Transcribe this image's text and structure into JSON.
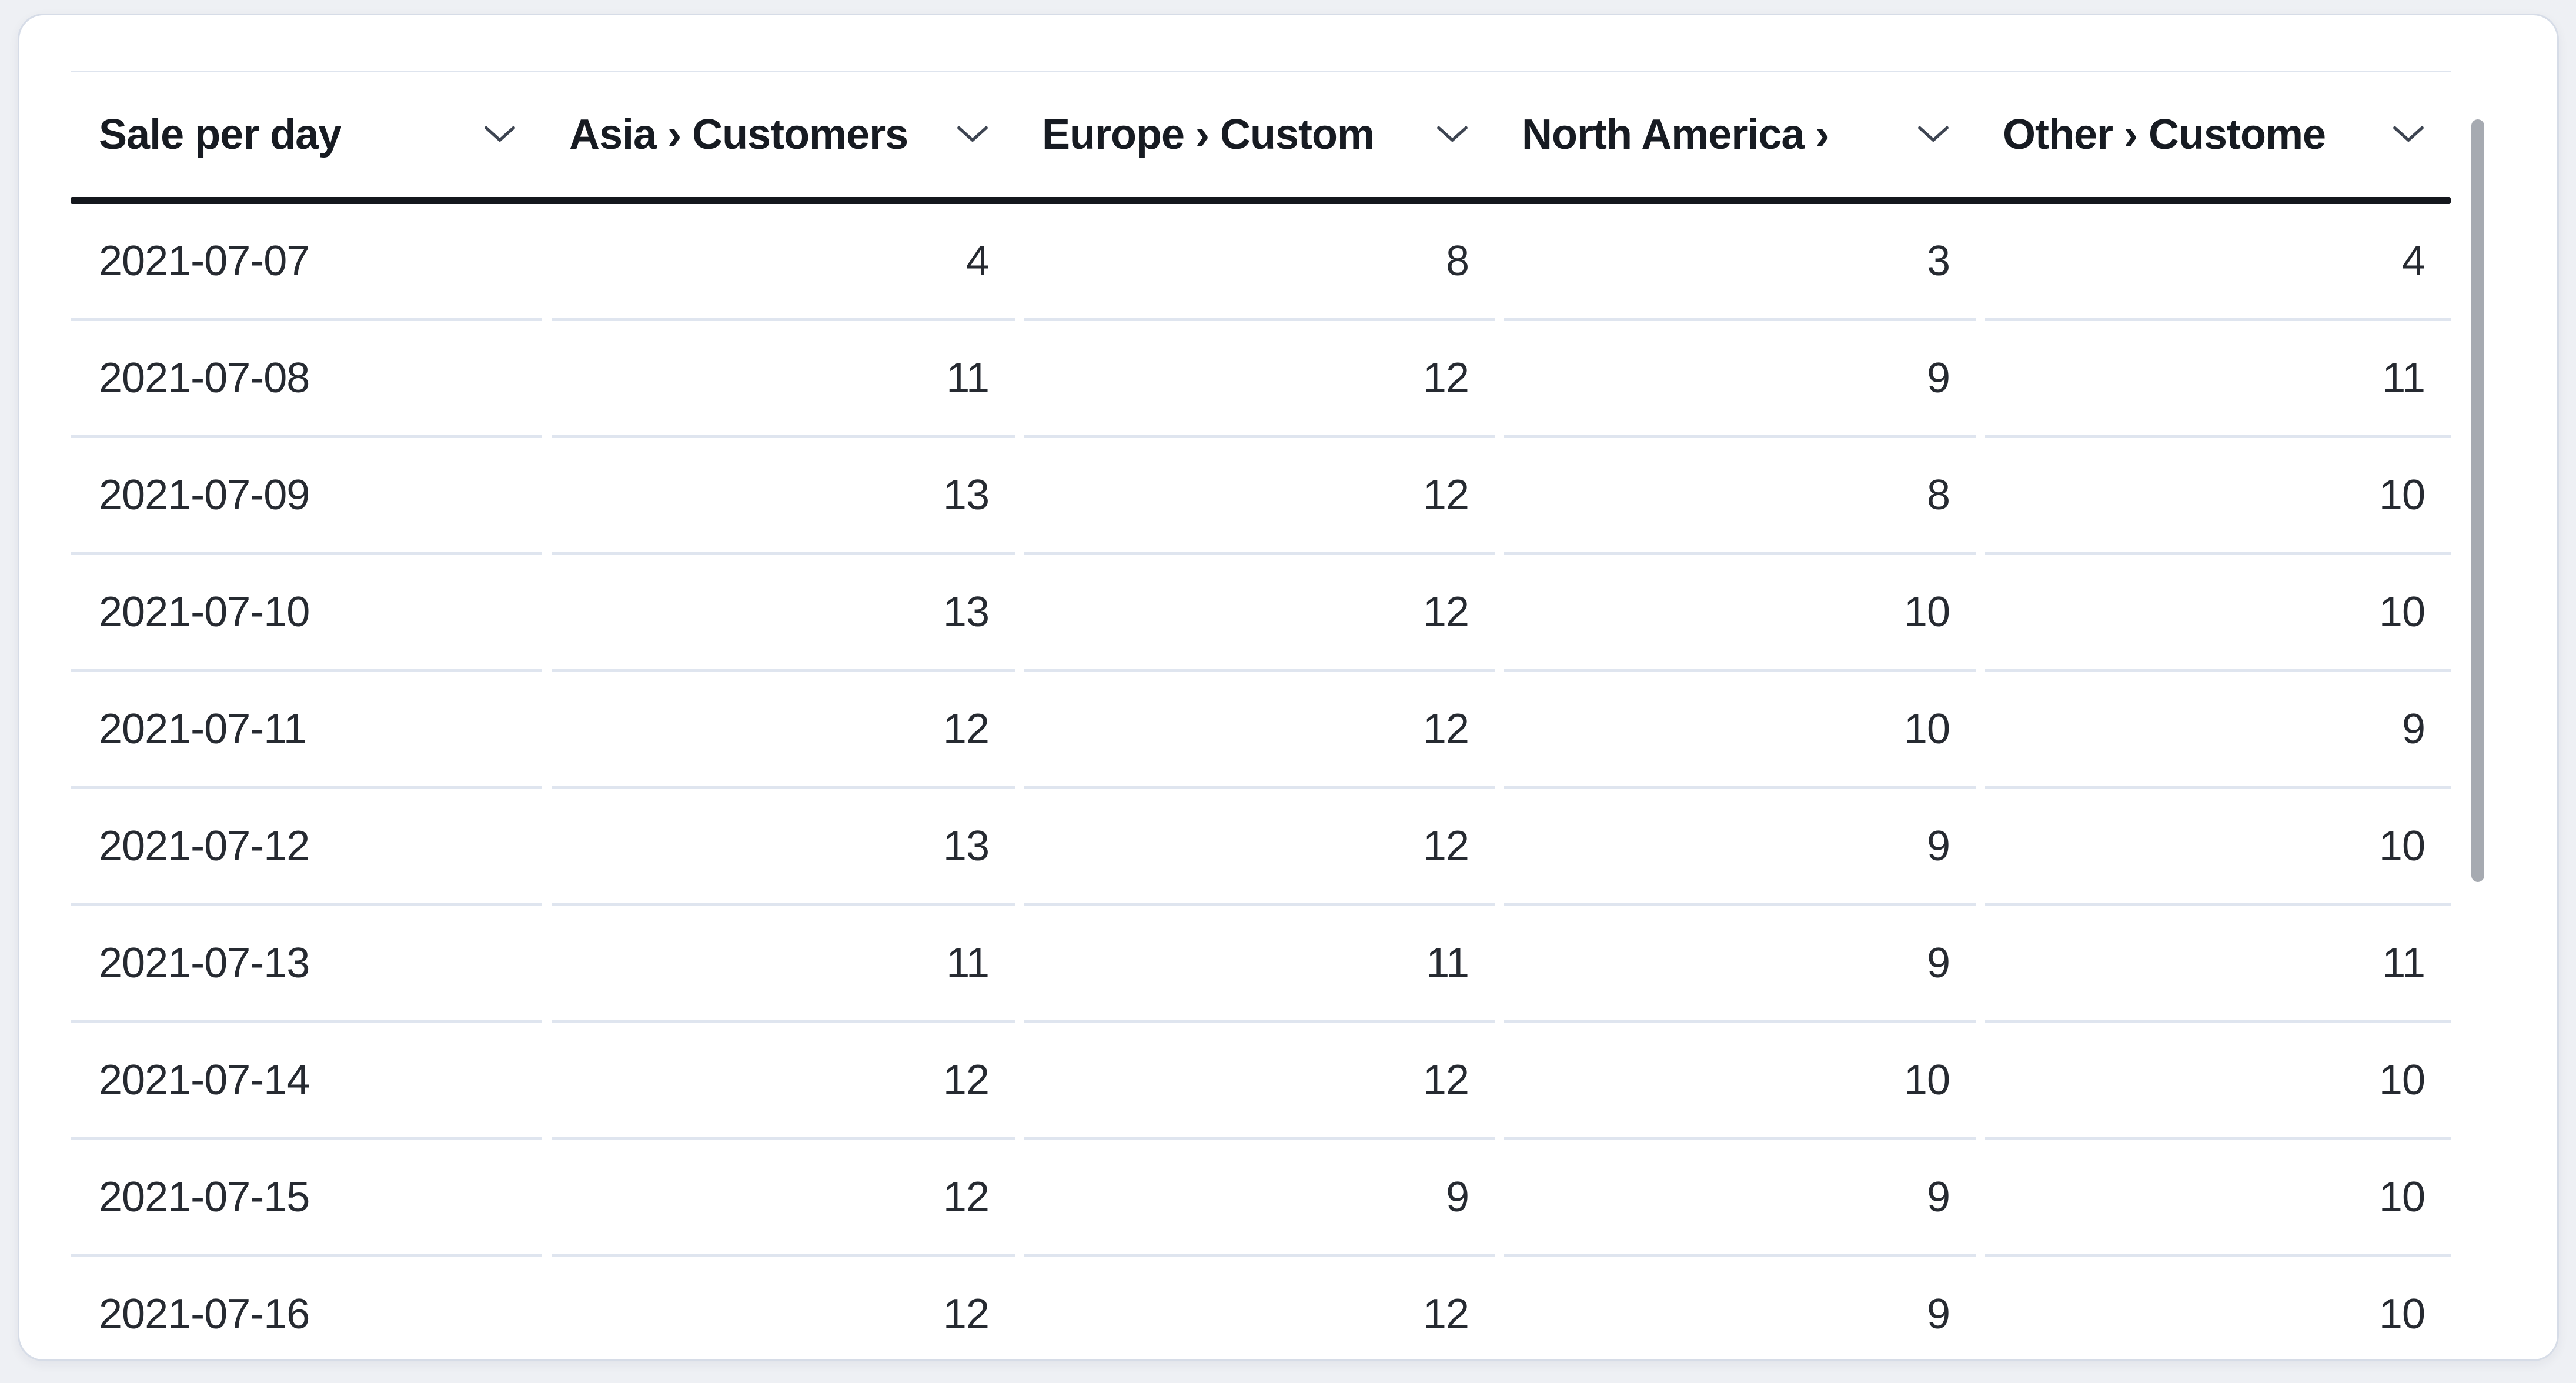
{
  "table": {
    "columns": [
      {
        "label": "Sale per day",
        "align": "left"
      },
      {
        "label": "Asia › Customers",
        "align": "right"
      },
      {
        "label": "Europe › Custom",
        "align": "right"
      },
      {
        "label": "North America ›",
        "align": "right"
      },
      {
        "label": "Other › Custome",
        "align": "right"
      }
    ],
    "rows": [
      [
        "2021-07-07",
        "4",
        "8",
        "3",
        "4"
      ],
      [
        "2021-07-08",
        "11",
        "12",
        "9",
        "11"
      ],
      [
        "2021-07-09",
        "13",
        "12",
        "8",
        "10"
      ],
      [
        "2021-07-10",
        "13",
        "12",
        "10",
        "10"
      ],
      [
        "2021-07-11",
        "12",
        "12",
        "10",
        "9"
      ],
      [
        "2021-07-12",
        "13",
        "12",
        "9",
        "10"
      ],
      [
        "2021-07-13",
        "11",
        "11",
        "9",
        "11"
      ],
      [
        "2021-07-14",
        "12",
        "12",
        "10",
        "10"
      ],
      [
        "2021-07-15",
        "12",
        "9",
        "9",
        "10"
      ],
      [
        "2021-07-16",
        "12",
        "12",
        "9",
        "10"
      ]
    ]
  },
  "icons": {
    "column_sort": "chevron-down"
  },
  "scrollbar": {
    "orientation": "vertical"
  },
  "colors": {
    "page_bg": "#eef0f4",
    "card_bg": "#ffffff",
    "card_border": "#d6dce7",
    "row_divider": "#dfe5ef",
    "header_rule": "#14171d",
    "header_text": "#171b22",
    "cell_text": "#262a31",
    "chevron": "#3e4552",
    "scrollbar_thumb": "#a6aab1"
  }
}
